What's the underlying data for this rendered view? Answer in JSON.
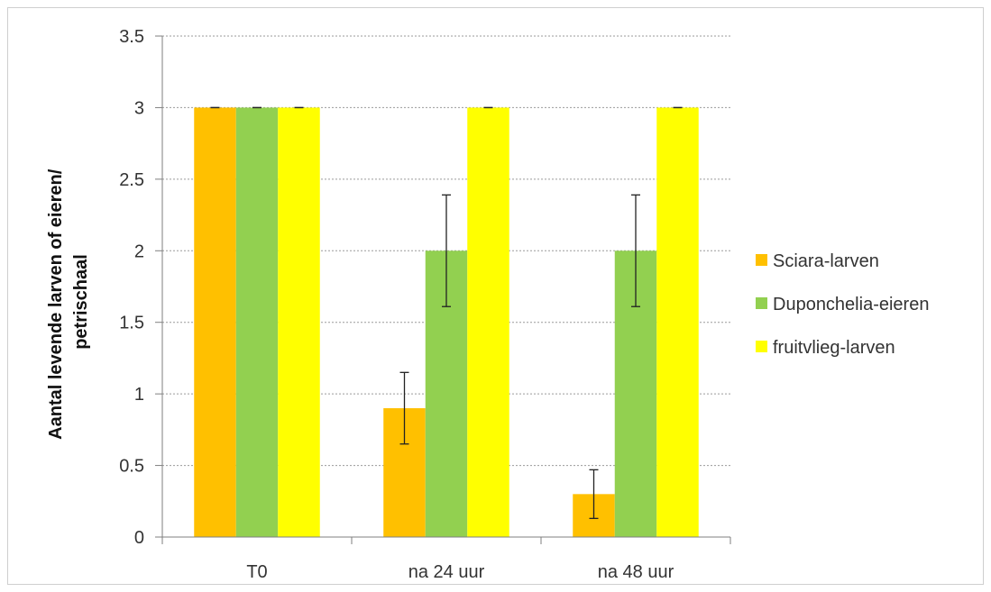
{
  "chart_data": {
    "type": "bar",
    "categories": [
      "T0",
      "na 24 uur",
      "na 48 uur"
    ],
    "series": [
      {
        "name": "Sciara-larven",
        "color": "#FFC000",
        "values": [
          3,
          0.9,
          0.3
        ],
        "errors": [
          0,
          0.25,
          0.17
        ]
      },
      {
        "name": "Duponchelia-eieren",
        "color": "#92D050",
        "values": [
          3,
          2,
          2
        ],
        "errors": [
          0,
          0.39,
          0.39
        ]
      },
      {
        "name": "fruitvlieg-larven",
        "color": "#FFFF00",
        "values": [
          3,
          3,
          3
        ],
        "errors": [
          0,
          0,
          0
        ]
      }
    ],
    "yticks": [
      "0",
      "0.5",
      "1",
      "1.5",
      "2",
      "2.5",
      "3",
      "3.5"
    ],
    "ylim": [
      0,
      3.5
    ],
    "ylabel_lines": [
      "Aantal levende larven of eieren/",
      "petrischaal"
    ],
    "title": "",
    "xlabel": "",
    "grid": true,
    "legend_position": "right"
  }
}
